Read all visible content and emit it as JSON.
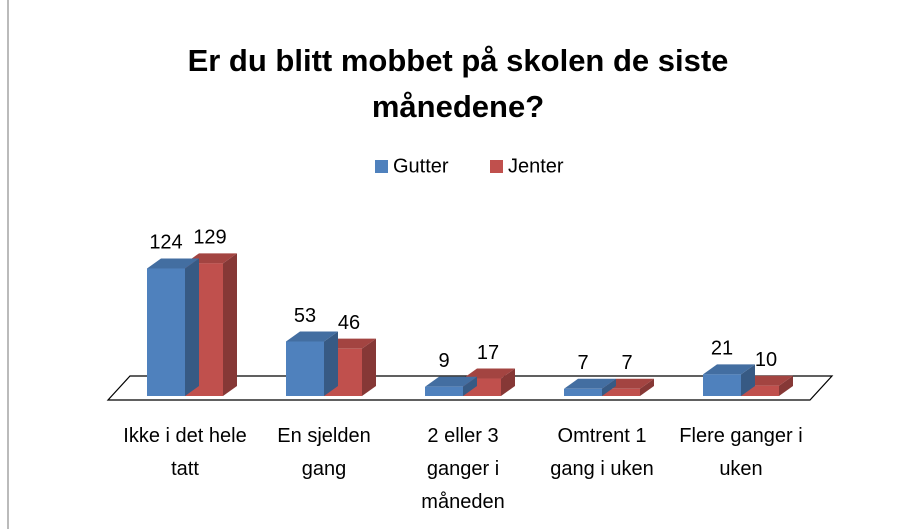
{
  "chart_data": {
    "type": "bar3d",
    "title": "Er du blitt mobbet på skolen de siste månedene?",
    "categories": [
      "Ikke i det hele tatt",
      "En sjelden gang",
      "2 eller 3 ganger i måneden",
      "Omtrent 1 gang i uken",
      "Flere ganger i uken"
    ],
    "series": [
      {
        "name": "Gutter",
        "color": "#4f81bd",
        "values": [
          124,
          53,
          9,
          7,
          21
        ]
      },
      {
        "name": "Jenter",
        "color": "#c0504d",
        "values": [
          129,
          46,
          17,
          7,
          10
        ]
      }
    ],
    "ylim": [
      0,
      140
    ],
    "legend": "top"
  }
}
